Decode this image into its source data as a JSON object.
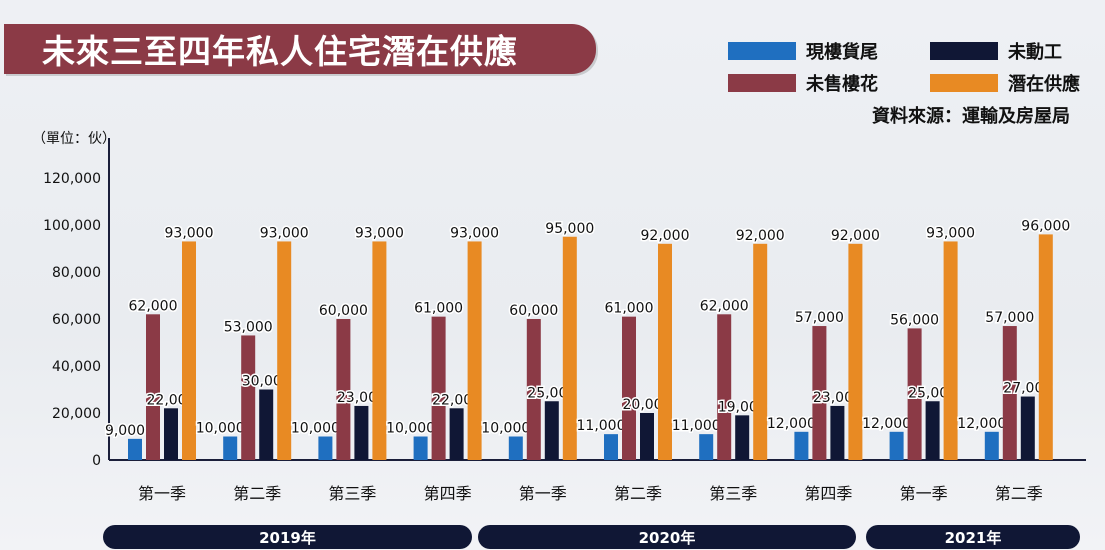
{
  "title": "未來三至四年私人住宅潛在供應",
  "unit_label": "（單位：伙）",
  "source": "資料來源：運輸及房屋局",
  "colors": {
    "title_bg": "#8b3a46",
    "year_bar": "#101735",
    "axis": "#1a1e3a"
  },
  "legend": [
    {
      "label": "現樓貨尾",
      "color": "#1f6fc0"
    },
    {
      "label": "未動工",
      "color": "#101735"
    },
    {
      "label": "未售樓花",
      "color": "#8b3a46"
    },
    {
      "label": "潛在供應",
      "color": "#e88a23"
    }
  ],
  "years": [
    {
      "label": "2019年"
    },
    {
      "label": "2020年"
    },
    {
      "label": "2021年"
    }
  ],
  "chart_data": {
    "type": "bar",
    "categories": [
      "第一季",
      "第二季",
      "第三季",
      "第四季",
      "第一季",
      "第二季",
      "第三季",
      "第四季",
      "第一季",
      "第二季"
    ],
    "series": [
      {
        "name": "現樓貨尾",
        "color": "#1f6fc0",
        "values": [
          9000,
          10000,
          10000,
          10000,
          10000,
          11000,
          11000,
          12000,
          12000,
          12000
        ]
      },
      {
        "name": "未售樓花",
        "color": "#8b3a46",
        "values": [
          62000,
          53000,
          60000,
          61000,
          60000,
          61000,
          62000,
          57000,
          56000,
          57000
        ]
      },
      {
        "name": "未動工",
        "color": "#101735",
        "values": [
          22000,
          30000,
          23000,
          22000,
          25000,
          20000,
          19000,
          23000,
          25000,
          27000
        ]
      },
      {
        "name": "潛在供應",
        "color": "#e88a23",
        "values": [
          93000,
          93000,
          93000,
          93000,
          95000,
          92000,
          92000,
          92000,
          93000,
          96000
        ]
      }
    ],
    "ylim": [
      0,
      120000
    ],
    "yticks": [
      0,
      20000,
      40000,
      60000,
      80000,
      100000,
      120000
    ],
    "ytick_labels": [
      "0",
      "20,000",
      "40,000",
      "60,000",
      "80,000",
      "100,000",
      "120,000"
    ],
    "grid": false,
    "legend_position": "top-right"
  }
}
